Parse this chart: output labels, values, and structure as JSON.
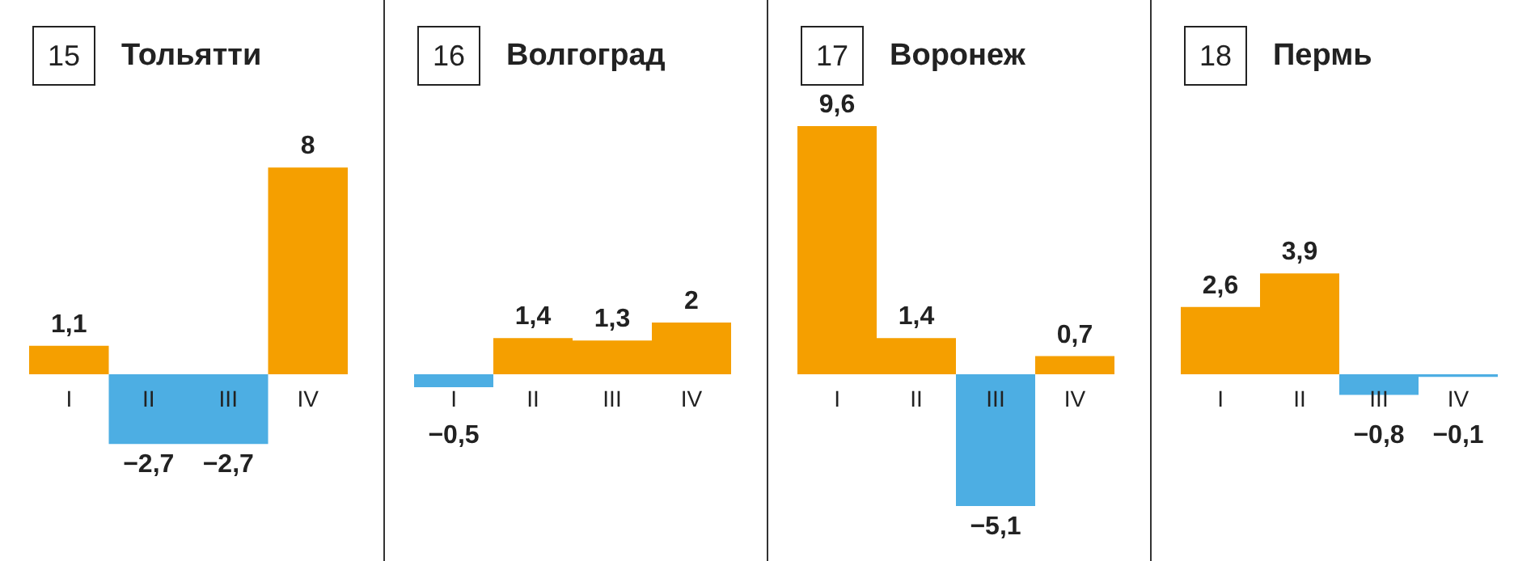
{
  "chart_data": [
    {
      "type": "bar",
      "title": "Тольятти",
      "annotations": [
        "15"
      ],
      "categories": [
        "I",
        "II",
        "III",
        "IV"
      ],
      "values": [
        1.1,
        -2.7,
        -2.7,
        8
      ],
      "value_labels": [
        "1,1",
        "−2,7",
        "−2,7",
        "8"
      ],
      "colors": [
        "#f59f00",
        "#4daee3",
        "#4daee3",
        "#f59f00"
      ]
    },
    {
      "type": "bar",
      "title": "Волгоград",
      "annotations": [
        "16"
      ],
      "categories": [
        "I",
        "II",
        "III",
        "IV"
      ],
      "values": [
        -0.5,
        1.4,
        1.3,
        2
      ],
      "value_labels": [
        "−0,5",
        "1,4",
        "1,3",
        "2"
      ],
      "colors": [
        "#4daee3",
        "#f59f00",
        "#f59f00",
        "#f59f00"
      ]
    },
    {
      "type": "bar",
      "title": "Воронеж",
      "annotations": [
        "17"
      ],
      "categories": [
        "I",
        "II",
        "III",
        "IV"
      ],
      "values": [
        9.6,
        1.4,
        -5.1,
        0.7
      ],
      "value_labels": [
        "9,6",
        "1,4",
        "−5,1",
        "0,7"
      ],
      "colors": [
        "#f59f00",
        "#f59f00",
        "#4daee3",
        "#f59f00"
      ]
    },
    {
      "type": "bar",
      "title": "Пермь",
      "annotations": [
        "18"
      ],
      "categories": [
        "I",
        "II",
        "III",
        "IV"
      ],
      "values": [
        2.6,
        3.9,
        -0.8,
        -0.1
      ],
      "value_labels": [
        "2,6",
        "3,9",
        "−0,8",
        "−0,1"
      ],
      "colors": [
        "#f59f00",
        "#f59f00",
        "#4daee3",
        "#4daee3"
      ]
    }
  ]
}
